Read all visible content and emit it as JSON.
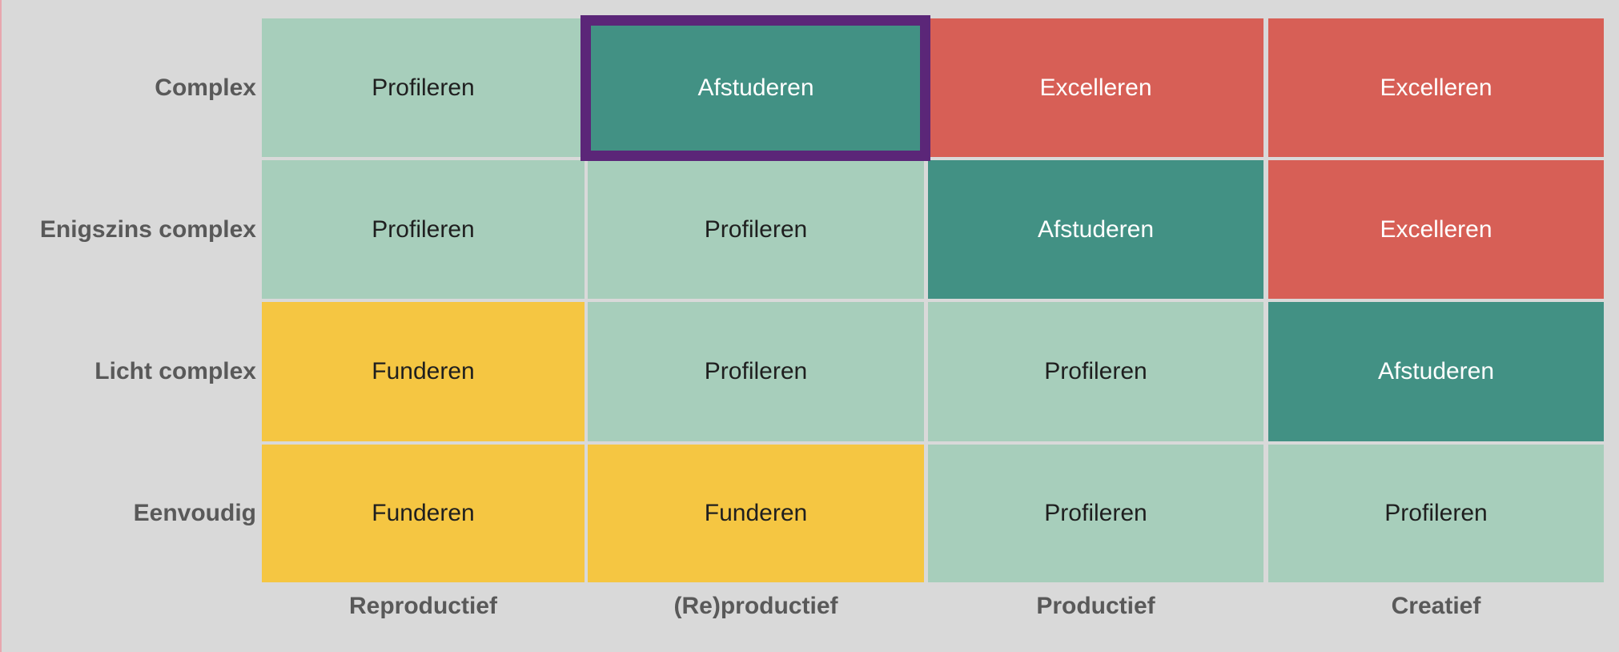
{
  "colors": {
    "Funderen": "#f5c642",
    "Profileren": "#a7cebb",
    "Afstuderen": "#429184",
    "Excelleren": "#d75f56",
    "highlight": "#5b2678",
    "light_text": "#ffffff",
    "dark_text": "#1f1f1f"
  },
  "rows": [
    "Complex",
    "Enigszins complex",
    "Licht complex",
    "Eenvoudig"
  ],
  "columns": [
    "Reproductief",
    "(Re)productief",
    "Productief",
    "Creatief"
  ],
  "cells": [
    [
      "Profileren",
      "Afstuderen",
      "Excelleren",
      "Excelleren"
    ],
    [
      "Profileren",
      "Profileren",
      "Afstuderen",
      "Excelleren"
    ],
    [
      "Funderen",
      "Profileren",
      "Profileren",
      "Afstuderen"
    ],
    [
      "Funderen",
      "Funderen",
      "Profileren",
      "Profileren"
    ]
  ],
  "highlighted": {
    "row": 0,
    "col": 1
  }
}
